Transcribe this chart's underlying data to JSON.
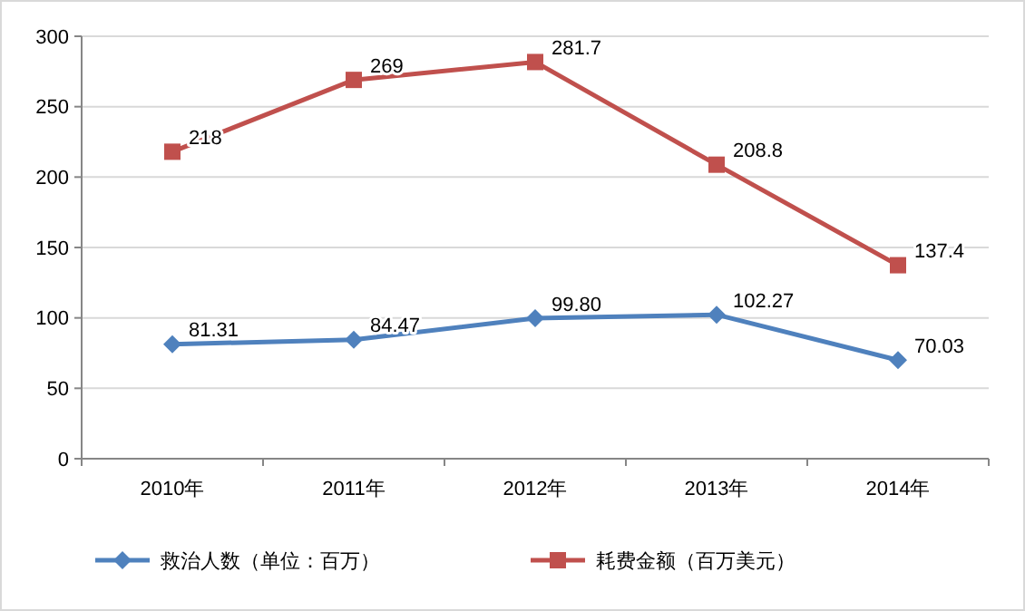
{
  "chart_data": {
    "type": "line",
    "categories": [
      "2010年",
      "2011年",
      "2012年",
      "2013年",
      "2014年"
    ],
    "series": [
      {
        "name": "救治人数（单位：百万）",
        "color": "#4f81bd",
        "marker": "diamond",
        "values": [
          81.31,
          84.47,
          99.8,
          102.27,
          70.03
        ],
        "value_labels": [
          "81.31",
          "84.47",
          "99.80",
          "102.27",
          "70.03"
        ]
      },
      {
        "name": "耗费金额（百万美元）",
        "color": "#c0504d",
        "marker": "square",
        "values": [
          218,
          269,
          281.7,
          208.8,
          137.4
        ],
        "value_labels": [
          "218",
          "269",
          "281.7",
          "208.8",
          "137.4"
        ]
      }
    ],
    "ylim": [
      0,
      300
    ],
    "yticks": [
      0,
      50,
      100,
      150,
      200,
      250,
      300
    ],
    "grid": "y",
    "legend": "bottom"
  }
}
